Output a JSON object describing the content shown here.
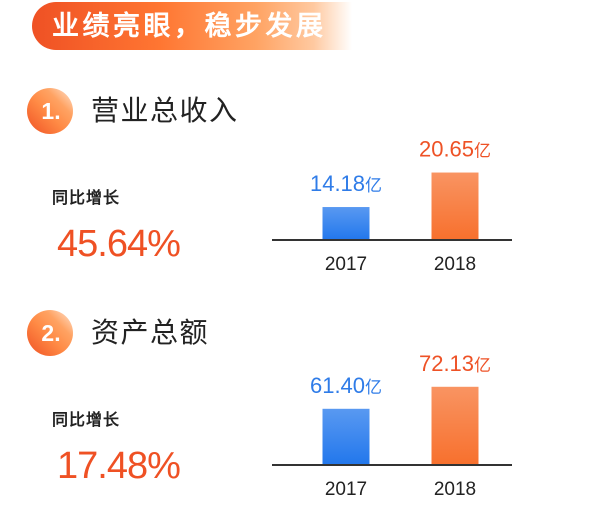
{
  "theme": {
    "accent": "#EF5124",
    "accent_light": "#FFA363",
    "text": "#222222",
    "axis": "#333333"
  },
  "banner": {
    "title": "业绩亮眼，稳步发展"
  },
  "sections": [
    {
      "number": "1.",
      "growth_label": "同比增长",
      "growth_value": "45.64%"
    },
    {
      "number": "2.",
      "growth_label": "同比增长",
      "growth_value": "17.48%"
    }
  ],
  "chart_data": [
    {
      "type": "bar",
      "title": "营业总收入",
      "categories": [
        "2017",
        "2018"
      ],
      "values": [
        14.18,
        20.65
      ],
      "data_labels": [
        "14.18",
        "20.65"
      ],
      "unit": "亿",
      "ylim": [
        8,
        23
      ],
      "grid": false,
      "bar_colors": [
        "#2277EC",
        "#F7702D"
      ],
      "label_colors": [
        "#2F7CE8",
        "#EE5226"
      ]
    },
    {
      "type": "bar",
      "title": "资产总额",
      "categories": [
        "2017",
        "2018"
      ],
      "values": [
        61.4,
        72.13
      ],
      "data_labels": [
        "61.40",
        "72.13"
      ],
      "unit": "亿",
      "ylim": [
        34,
        73
      ],
      "grid": false,
      "bar_colors": [
        "#2277EC",
        "#F7702D"
      ],
      "label_colors": [
        "#2F7CE8",
        "#EE5226"
      ]
    }
  ]
}
